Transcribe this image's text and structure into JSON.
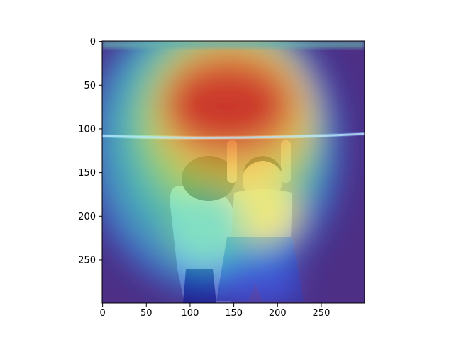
{
  "figure": {
    "type": "image-with-heatmap-overlay",
    "colormap": "jet",
    "overlay_alpha": 0.5,
    "scene": "a child in a light shirt and blue shorts hangs from a horizontal bar while an adult in a white shirt holds the child from behind; the heatmap peaks above the bar and over the child's face and torso"
  },
  "x_axis": {
    "min": 0,
    "max": 299,
    "ticks": [
      {
        "value": 0,
        "label": "0"
      },
      {
        "value": 50,
        "label": "50"
      },
      {
        "value": 100,
        "label": "100"
      },
      {
        "value": 150,
        "label": "150"
      },
      {
        "value": 200,
        "label": "200"
      },
      {
        "value": 250,
        "label": "250"
      }
    ]
  },
  "y_axis": {
    "min": 0,
    "max": 299,
    "inverted": true,
    "ticks": [
      {
        "value": 0,
        "label": "0"
      },
      {
        "value": 50,
        "label": "50"
      },
      {
        "value": 100,
        "label": "100"
      },
      {
        "value": 150,
        "label": "150"
      },
      {
        "value": 200,
        "label": "200"
      },
      {
        "value": 250,
        "label": "250"
      }
    ]
  },
  "colors": {
    "jet_low": "#30118a",
    "jet_high": "#e01a0a",
    "bar": "#8fd6f0",
    "adult_shirt": "#f0f4f2",
    "child_shirt": "#f4e4b8",
    "shorts": "#5a8fc8"
  }
}
